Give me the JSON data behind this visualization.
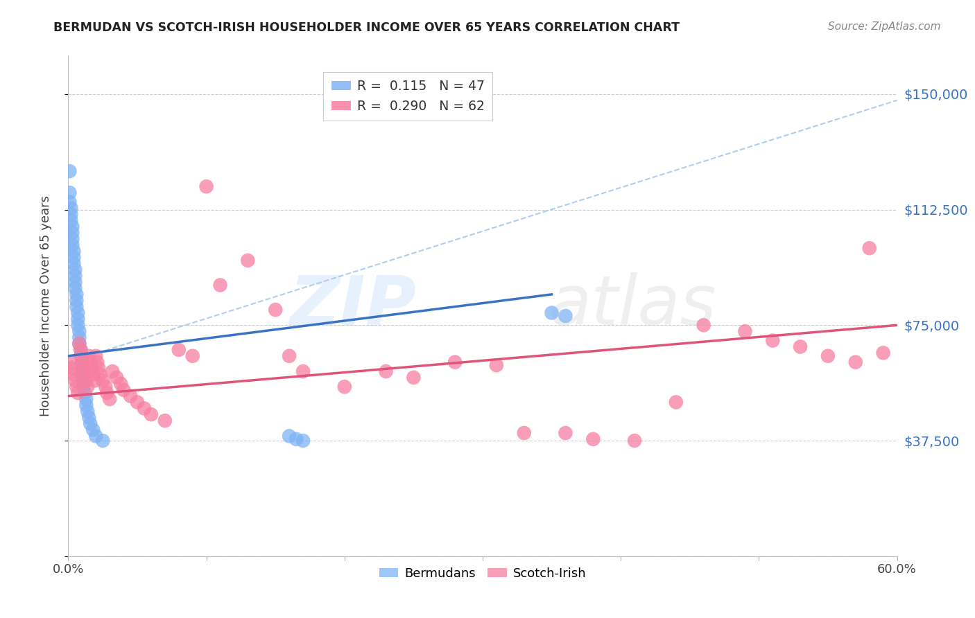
{
  "title": "BERMUDAN VS SCOTCH-IRISH HOUSEHOLDER INCOME OVER 65 YEARS CORRELATION CHART",
  "source": "Source: ZipAtlas.com",
  "ylabel": "Householder Income Over 65 years",
  "watermark_part1": "ZIP",
  "watermark_part2": "atlas",
  "xlim": [
    0.0,
    0.6
  ],
  "ylim": [
    0,
    162500
  ],
  "yticks": [
    0,
    37500,
    75000,
    112500,
    150000
  ],
  "ytick_labels": [
    "",
    "$37,500",
    "$75,000",
    "$112,500",
    "$150,000"
  ],
  "grid_color": "#cccccc",
  "background_color": "#ffffff",
  "bermuda_color": "#7EB3F5",
  "scotch_color": "#F87EA0",
  "bermuda_line_color": "#3A72C4",
  "scotch_line_color": "#E0547A",
  "dash_line_color": "#A8C8F0",
  "label_color": "#3A72C4",
  "bermuda_R": 0.115,
  "bermuda_N": 47,
  "scotch_R": 0.29,
  "scotch_N": 62,
  "bermuda_x": [
    0.001,
    0.001,
    0.001,
    0.002,
    0.002,
    0.002,
    0.003,
    0.003,
    0.003,
    0.003,
    0.004,
    0.004,
    0.004,
    0.005,
    0.005,
    0.005,
    0.005,
    0.006,
    0.006,
    0.006,
    0.007,
    0.007,
    0.007,
    0.008,
    0.008,
    0.008,
    0.009,
    0.009,
    0.01,
    0.01,
    0.01,
    0.011,
    0.011,
    0.012,
    0.013,
    0.013,
    0.014,
    0.015,
    0.016,
    0.018,
    0.02,
    0.025,
    0.16,
    0.165,
    0.17,
    0.35,
    0.36
  ],
  "bermuda_y": [
    125000,
    118000,
    115000,
    113000,
    111000,
    109000,
    107000,
    105000,
    103000,
    101000,
    99000,
    97000,
    95000,
    93000,
    91000,
    89000,
    87000,
    85000,
    83000,
    81000,
    79000,
    77000,
    75000,
    73000,
    71000,
    69000,
    67000,
    65000,
    63000,
    61000,
    59000,
    57000,
    55000,
    53000,
    51000,
    49000,
    47000,
    45000,
    43000,
    41000,
    39000,
    37500,
    39000,
    38000,
    37500,
    79000,
    78000
  ],
  "scotch_x": [
    0.002,
    0.003,
    0.004,
    0.005,
    0.006,
    0.007,
    0.008,
    0.009,
    0.01,
    0.01,
    0.011,
    0.012,
    0.013,
    0.014,
    0.015,
    0.016,
    0.017,
    0.018,
    0.019,
    0.02,
    0.021,
    0.022,
    0.023,
    0.025,
    0.027,
    0.028,
    0.03,
    0.032,
    0.035,
    0.038,
    0.04,
    0.045,
    0.05,
    0.055,
    0.06,
    0.07,
    0.08,
    0.09,
    0.1,
    0.11,
    0.13,
    0.15,
    0.16,
    0.17,
    0.2,
    0.23,
    0.25,
    0.28,
    0.31,
    0.33,
    0.36,
    0.38,
    0.41,
    0.44,
    0.46,
    0.49,
    0.51,
    0.53,
    0.55,
    0.57,
    0.58,
    0.59
  ],
  "scotch_y": [
    63000,
    61000,
    59000,
    57000,
    55000,
    53000,
    69000,
    67000,
    65000,
    63000,
    61000,
    59000,
    57000,
    55000,
    65000,
    63000,
    61000,
    59000,
    57000,
    65000,
    63000,
    61000,
    59000,
    57000,
    55000,
    53000,
    51000,
    60000,
    58000,
    56000,
    54000,
    52000,
    50000,
    48000,
    46000,
    44000,
    67000,
    65000,
    120000,
    88000,
    96000,
    80000,
    65000,
    60000,
    55000,
    60000,
    58000,
    63000,
    62000,
    40000,
    40000,
    38000,
    37500,
    50000,
    75000,
    73000,
    70000,
    68000,
    65000,
    63000,
    100000,
    66000
  ]
}
